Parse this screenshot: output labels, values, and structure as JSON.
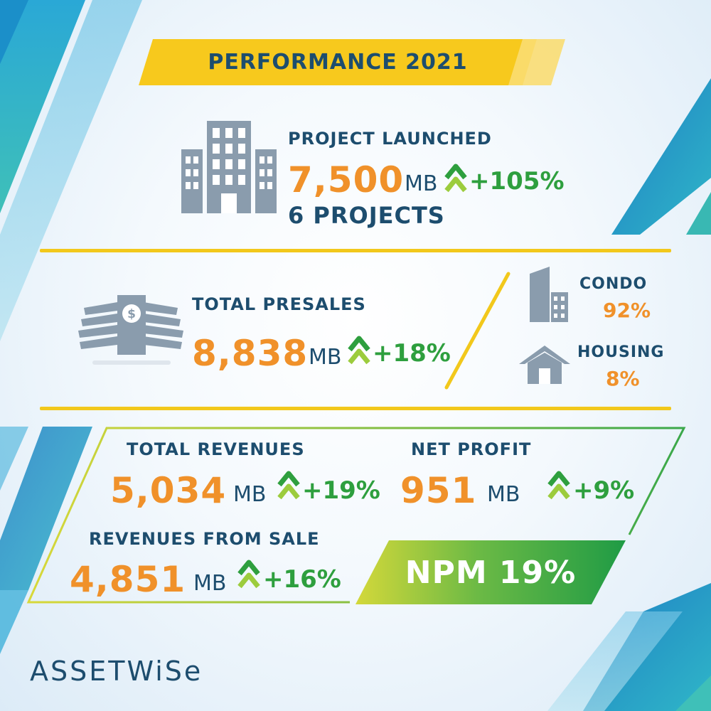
{
  "header": {
    "title": "PERFORMANCE 2021"
  },
  "launched": {
    "label": "PROJECT LAUNCHED",
    "value": "7,500",
    "unit": "MB",
    "change": "+105%",
    "projects": "6 PROJECTS"
  },
  "presales": {
    "label": "TOTAL PRESALES",
    "value": "8,838",
    "unit": "MB",
    "change": "+18%",
    "condo": {
      "label": "CONDO",
      "value": "92%"
    },
    "housing": {
      "label": "HOUSING",
      "value": "8%"
    }
  },
  "revenues": {
    "label": "TOTAL REVENUES",
    "value": "5,034",
    "unit": "MB",
    "change": "+19%"
  },
  "net_profit": {
    "label": "NET PROFIT",
    "value": "951",
    "unit": "MB",
    "change": "+9%"
  },
  "sale_revenues": {
    "label": "REVENUES FROM SALE",
    "value": "4,851",
    "unit": "MB",
    "change": "+16%"
  },
  "npm": {
    "text": "NPM 19%"
  },
  "brand": {
    "logo": "ASSETWiSe"
  },
  "colors": {
    "navy": "#1d4d6e",
    "orange": "#f0912a",
    "green": "#2e9f3e",
    "gold": "#f2c81b",
    "icon_gray": "#8a9cad"
  },
  "icons": [
    "building-icon",
    "money-stack-icon",
    "up-arrow-icon",
    "condo-building-icon",
    "house-icon"
  ]
}
